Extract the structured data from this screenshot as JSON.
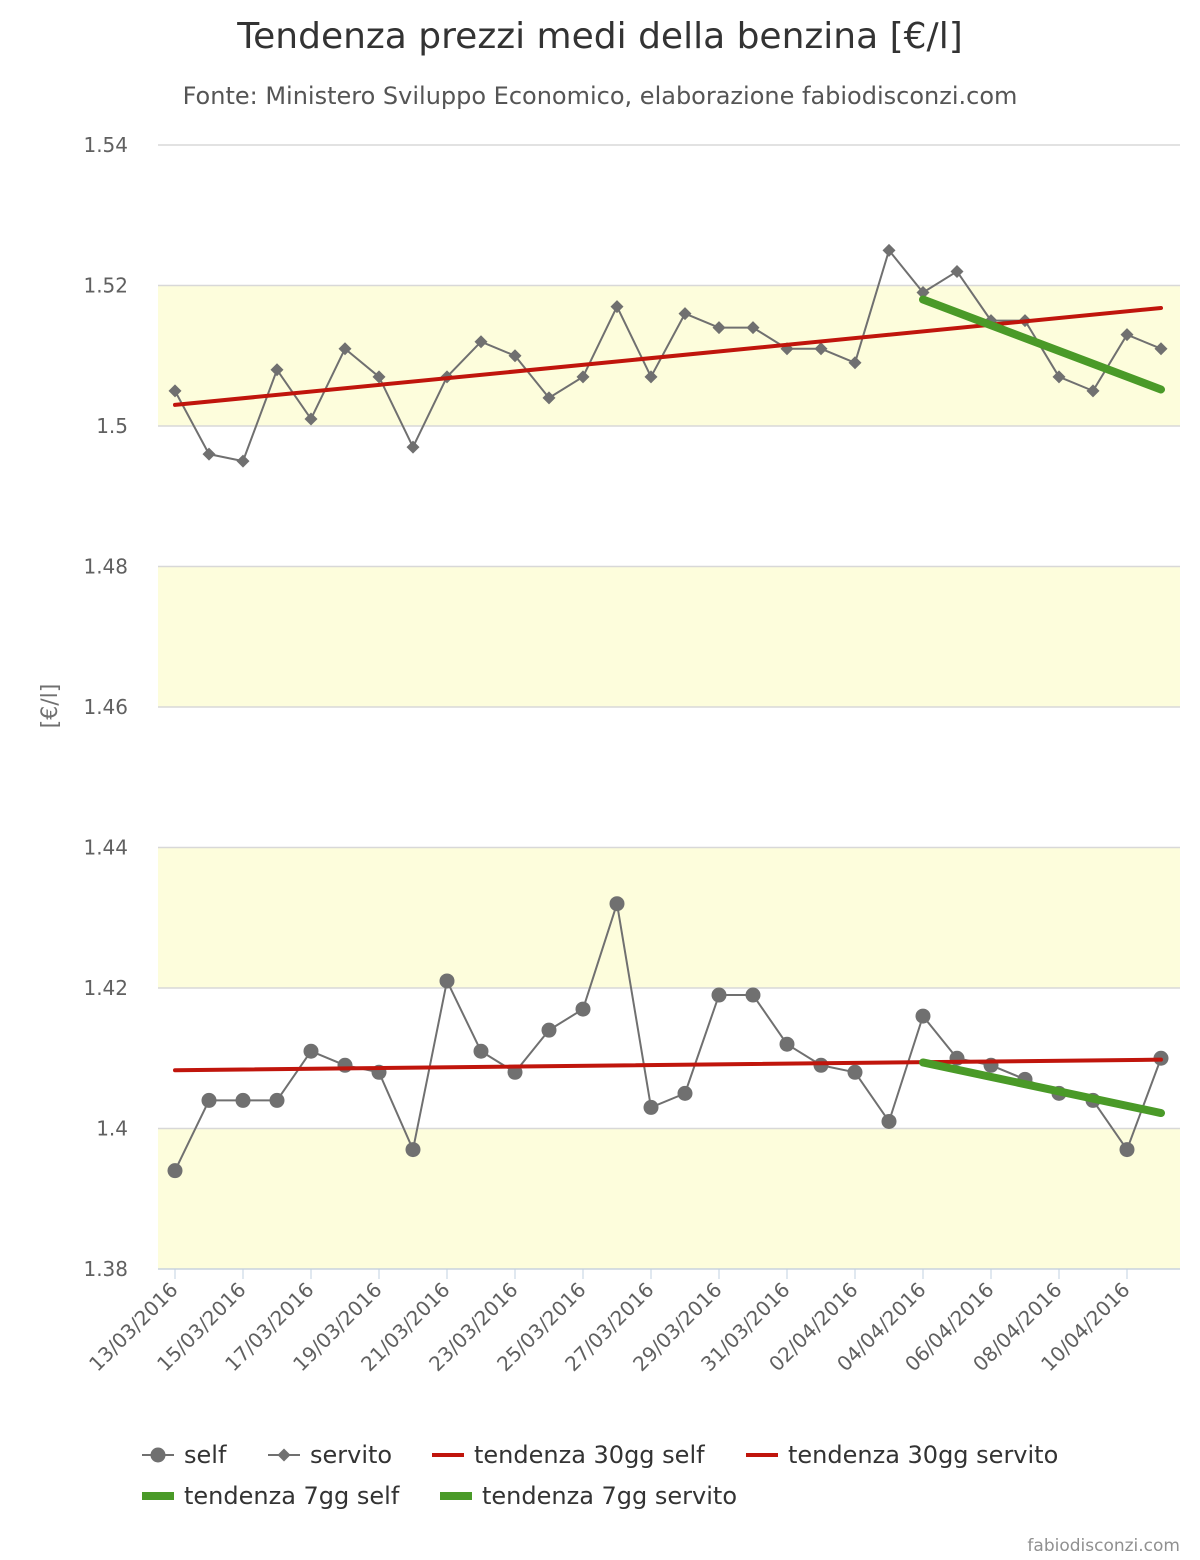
{
  "chart_data": {
    "type": "line",
    "title": "Tendenza prezzi medi della benzina [€/l]",
    "subtitle": "Fonte: Ministero Sviluppo Economico, elaborazione fabiodisconzi.com",
    "ylabel": "[€/l]",
    "xlabel": "",
    "ylim": [
      1.38,
      1.54
    ],
    "yticks": [
      1.38,
      1.4,
      1.42,
      1.44,
      1.46,
      1.48,
      1.5,
      1.52,
      1.54
    ],
    "ytick_labels": [
      "1.38",
      "1.4",
      "1.42",
      "1.44",
      "1.46",
      "1.48",
      "1.5",
      "1.52",
      "1.54"
    ],
    "bands": [
      [
        1.38,
        1.4
      ],
      [
        1.42,
        1.44
      ],
      [
        1.46,
        1.48
      ],
      [
        1.5,
        1.52
      ]
    ],
    "band_color": "#FDFDDC",
    "categories": [
      "13/03/2016",
      "14/03/2016",
      "15/03/2016",
      "16/03/2016",
      "17/03/2016",
      "18/03/2016",
      "19/03/2016",
      "20/03/2016",
      "21/03/2016",
      "22/03/2016",
      "23/03/2016",
      "24/03/2016",
      "25/03/2016",
      "26/03/2016",
      "27/03/2016",
      "28/03/2016",
      "29/03/2016",
      "30/03/2016",
      "31/03/2016",
      "01/04/2016",
      "02/04/2016",
      "03/04/2016",
      "04/04/2016",
      "05/04/2016",
      "06/04/2016",
      "07/04/2016",
      "08/04/2016",
      "09/04/2016",
      "10/04/2016",
      "11/04/2016"
    ],
    "x_tick_labels": [
      "13/03/2016",
      "15/03/2016",
      "17/03/2016",
      "19/03/2016",
      "21/03/2016",
      "23/03/2016",
      "25/03/2016",
      "27/03/2016",
      "29/03/2016",
      "31/03/2016",
      "02/04/2016",
      "04/04/2016",
      "06/04/2016",
      "08/04/2016",
      "10/04/2016"
    ],
    "grid": true,
    "legend_position": "bottom",
    "series": [
      {
        "name": "self",
        "color": "#707070",
        "marker": "circle",
        "values": [
          1.394,
          1.404,
          1.404,
          1.404,
          1.411,
          1.409,
          1.408,
          1.397,
          1.421,
          1.411,
          1.408,
          1.414,
          1.417,
          1.432,
          1.403,
          1.405,
          1.419,
          1.419,
          1.412,
          1.409,
          1.408,
          1.401,
          1.416,
          1.41,
          1.409,
          1.407,
          1.405,
          1.404,
          1.397,
          1.41
        ]
      },
      {
        "name": "servito",
        "color": "#707070",
        "marker": "diamond",
        "values": [
          1.505,
          1.496,
          1.495,
          1.508,
          1.501,
          1.511,
          1.507,
          1.497,
          1.507,
          1.512,
          1.51,
          1.504,
          1.507,
          1.517,
          1.507,
          1.516,
          1.514,
          1.514,
          1.511,
          1.511,
          1.509,
          1.525,
          1.519,
          1.522,
          1.515,
          1.515,
          1.507,
          1.505,
          1.513,
          1.511
        ]
      },
      {
        "name": "tendenza 30gg self",
        "color": "#C0150C",
        "marker": "none",
        "x": [
          "13/03/2016",
          "11/04/2016"
        ],
        "values": [
          1.4083,
          1.4098
        ]
      },
      {
        "name": "tendenza 30gg servito",
        "color": "#C0150C",
        "marker": "none",
        "x": [
          "13/03/2016",
          "11/04/2016"
        ],
        "values": [
          1.503,
          1.5168
        ]
      },
      {
        "name": "tendenza 7gg self",
        "color": "#4A9A28",
        "marker": "none",
        "x": [
          "04/04/2016",
          "11/04/2016"
        ],
        "values": [
          1.4094,
          1.4022
        ]
      },
      {
        "name": "tendenza 7gg servito",
        "color": "#4A9A28",
        "marker": "none",
        "x": [
          "04/04/2016",
          "11/04/2016"
        ],
        "values": [
          1.518,
          1.5052
        ]
      }
    ],
    "credits": "fabiodisconzi.com"
  }
}
